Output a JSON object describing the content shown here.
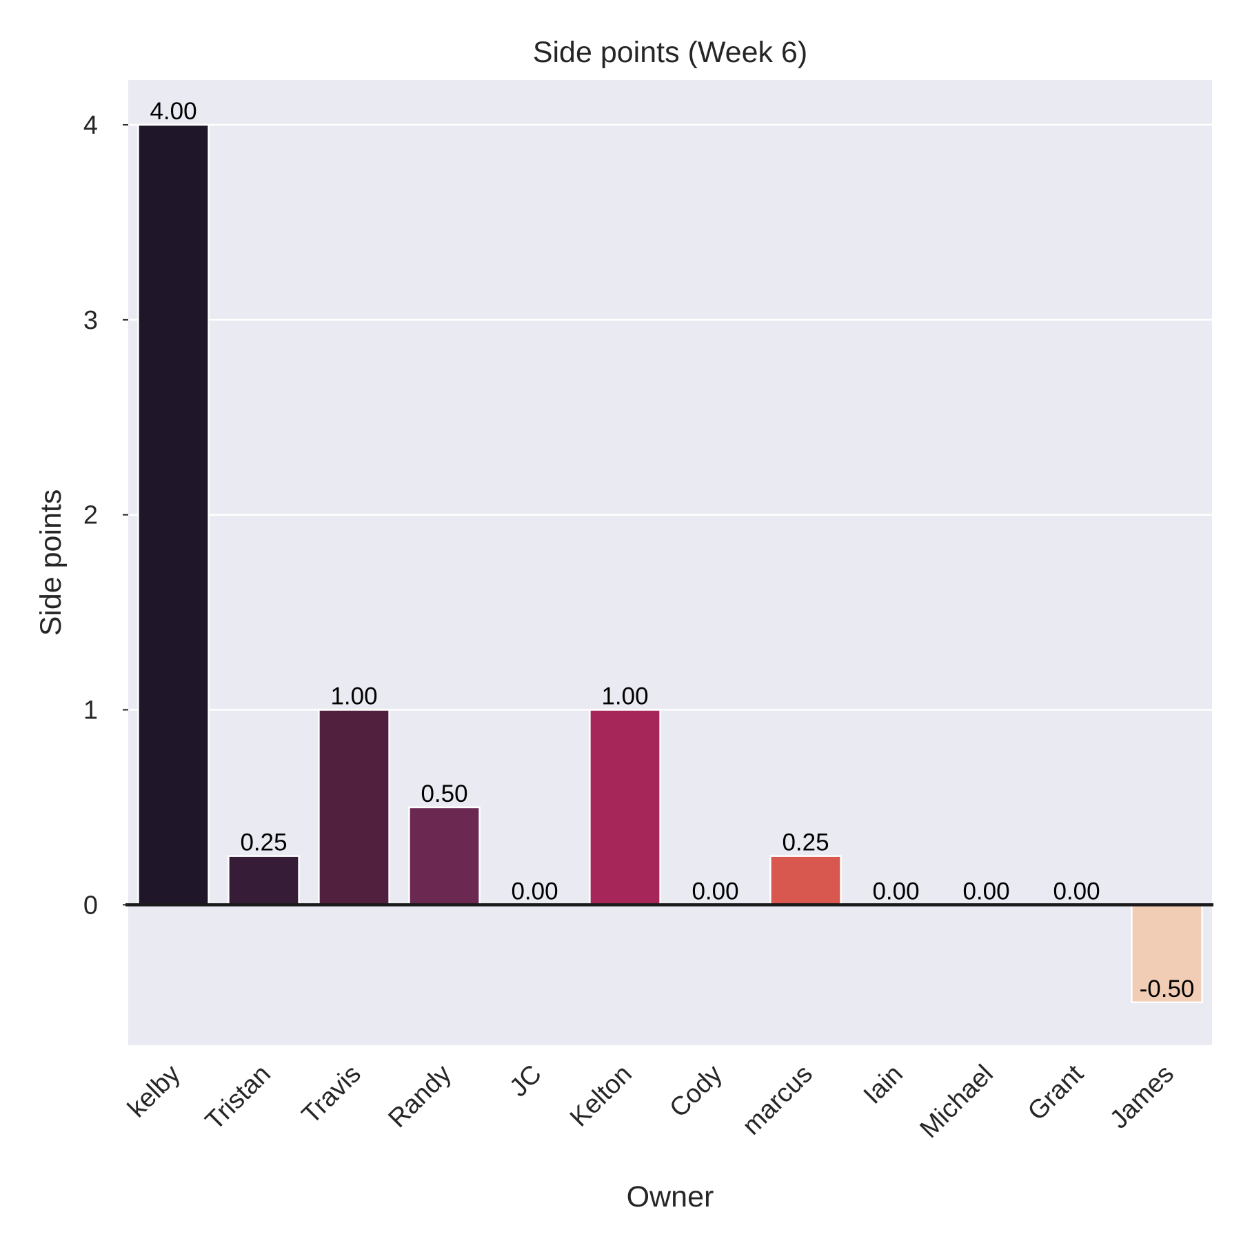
{
  "chart_data": {
    "type": "bar",
    "title": "Side points (Week 6)",
    "xlabel": "Owner",
    "ylabel": "Side points",
    "categories": [
      "kelby",
      "Tristan",
      "Travis",
      "Randy",
      "JC",
      "Kelton",
      "Cody",
      "marcus",
      "Iain",
      "Michael",
      "Grant",
      "James"
    ],
    "values": [
      4.0,
      0.25,
      1.0,
      0.5,
      0.0,
      1.0,
      0.0,
      0.25,
      0.0,
      0.0,
      0.0,
      -0.5
    ],
    "value_labels": [
      "4.00",
      "0.25",
      "1.00",
      "0.50",
      "0.00",
      "1.00",
      "0.00",
      "0.25",
      "0.00",
      "0.00",
      "0.00",
      "-0.50"
    ],
    "colors": [
      "#1f1629",
      "#371c38",
      "#51203f",
      "#6b2850",
      "#87264f",
      "#a6265a",
      "#c12a52",
      "#d8584f",
      "#e47257",
      "#ec8e6a",
      "#f2ae8e",
      "#f2cdb6"
    ],
    "ylim": [
      -0.72,
      4.23
    ],
    "yticks": [
      0,
      1,
      2,
      3,
      4
    ],
    "ytick_labels": [
      "0",
      "1",
      "2",
      "3",
      "4"
    ],
    "grid": true,
    "zero_line": true,
    "plot_background": "#eaeaf2",
    "grid_color": "#ffffff",
    "bar_edge_color": "#ffffff"
  }
}
